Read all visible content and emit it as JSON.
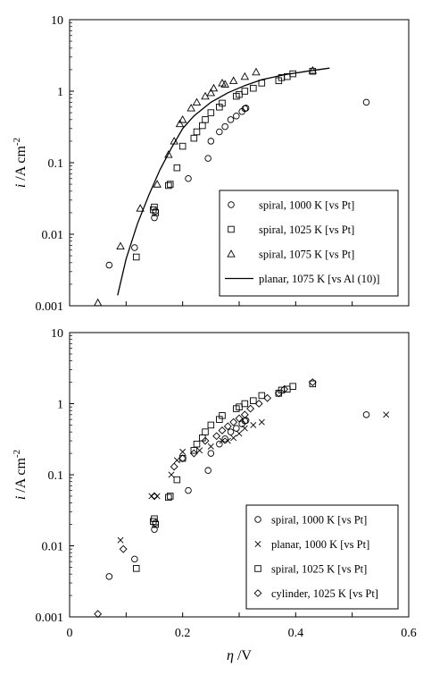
{
  "chart_data": [
    {
      "type": "scatter",
      "title": "",
      "xlabel": "",
      "ylabel_italic": "i",
      "ylabel_rest": " /A cm",
      "ylabel_sup": "-2",
      "ylim": [
        0.001,
        10
      ],
      "yscale": "log",
      "xlim": [
        0,
        0.6
      ],
      "x_ticks_visible": false,
      "y_tick_labels": [
        "0.001",
        "0.01",
        "0.1",
        "1",
        "10"
      ],
      "grid": false,
      "legend_position": "bottom-right",
      "series": [
        {
          "name": "spiral, 1000 K [vs Pt]",
          "marker": "circle",
          "x": [
            0.07,
            0.115,
            0.15,
            0.152,
            0.21,
            0.245,
            0.25,
            0.265,
            0.275,
            0.285,
            0.295,
            0.305,
            0.31,
            0.312,
            0.525
          ],
          "y": [
            0.0037,
            0.0065,
            0.017,
            0.021,
            0.06,
            0.115,
            0.2,
            0.27,
            0.32,
            0.4,
            0.45,
            0.52,
            0.57,
            0.58,
            0.7
          ]
        },
        {
          "name": "spiral, 1025 K [vs Pt]",
          "marker": "square",
          "x": [
            0.118,
            0.148,
            0.15,
            0.152,
            0.175,
            0.178,
            0.19,
            0.2,
            0.22,
            0.225,
            0.235,
            0.24,
            0.25,
            0.265,
            0.27,
            0.295,
            0.3,
            0.31,
            0.325,
            0.34,
            0.37,
            0.375,
            0.385,
            0.395,
            0.43
          ],
          "y": [
            0.0048,
            0.022,
            0.024,
            0.02,
            0.048,
            0.05,
            0.085,
            0.17,
            0.22,
            0.27,
            0.33,
            0.4,
            0.5,
            0.6,
            0.68,
            0.85,
            0.9,
            1.0,
            1.1,
            1.3,
            1.4,
            1.55,
            1.6,
            1.75,
            1.9
          ]
        },
        {
          "name": "spiral, 1075 K [vs Pt]",
          "marker": "triangle",
          "x": [
            0.05,
            0.09,
            0.125,
            0.155,
            0.175,
            0.185,
            0.195,
            0.2,
            0.215,
            0.225,
            0.24,
            0.25,
            0.255,
            0.27,
            0.275,
            0.29,
            0.31,
            0.33,
            0.43
          ],
          "y": [
            0.0011,
            0.0068,
            0.023,
            0.05,
            0.13,
            0.2,
            0.35,
            0.4,
            0.58,
            0.7,
            0.85,
            0.95,
            1.1,
            1.3,
            1.25,
            1.4,
            1.6,
            1.85,
            1.95
          ]
        },
        {
          "name": "planar, 1075 K [vs Al (10)]",
          "marker": "line",
          "x": [
            0.085,
            0.1,
            0.12,
            0.14,
            0.16,
            0.18,
            0.2,
            0.22,
            0.25,
            0.28,
            0.31,
            0.34,
            0.38,
            0.42,
            0.46
          ],
          "y": [
            0.0014,
            0.0045,
            0.014,
            0.035,
            0.08,
            0.16,
            0.3,
            0.45,
            0.7,
            0.95,
            1.2,
            1.45,
            1.7,
            1.9,
            2.1
          ]
        }
      ]
    },
    {
      "type": "scatter",
      "title": "",
      "xlabel_italic": "η",
      "xlabel_rest": " /V",
      "ylabel_italic": "i",
      "ylabel_rest": " /A cm",
      "ylabel_sup": "-2",
      "xlim": [
        0,
        0.6
      ],
      "x_tick_labels": [
        "0",
        "0.2",
        "0.4",
        "0.6"
      ],
      "ylim": [
        0.001,
        10
      ],
      "yscale": "log",
      "y_tick_labels": [
        "0.001",
        "0.01",
        "0.1",
        "1",
        "10"
      ],
      "grid": false,
      "legend_position": "bottom-right",
      "series": [
        {
          "name": "spiral, 1000 K [vs Pt]",
          "marker": "circle",
          "x": [
            0.07,
            0.115,
            0.15,
            0.152,
            0.21,
            0.245,
            0.25,
            0.265,
            0.275,
            0.285,
            0.295,
            0.305,
            0.31,
            0.312,
            0.525
          ],
          "y": [
            0.0037,
            0.0065,
            0.017,
            0.021,
            0.06,
            0.115,
            0.2,
            0.27,
            0.32,
            0.4,
            0.45,
            0.52,
            0.57,
            0.58,
            0.7
          ]
        },
        {
          "name": "planar, 1000 K [vs Pt]",
          "marker": "cross",
          "x": [
            0.09,
            0.145,
            0.155,
            0.18,
            0.19,
            0.2,
            0.23,
            0.25,
            0.27,
            0.28,
            0.29,
            0.3,
            0.31,
            0.325,
            0.34,
            0.56
          ],
          "y": [
            0.012,
            0.05,
            0.05,
            0.1,
            0.16,
            0.21,
            0.22,
            0.25,
            0.3,
            0.3,
            0.33,
            0.38,
            0.45,
            0.5,
            0.55,
            0.7
          ]
        },
        {
          "name": "spiral, 1025 K [vs Pt]",
          "marker": "square",
          "x": [
            0.118,
            0.148,
            0.15,
            0.152,
            0.175,
            0.178,
            0.19,
            0.2,
            0.22,
            0.225,
            0.235,
            0.24,
            0.25,
            0.265,
            0.27,
            0.295,
            0.3,
            0.31,
            0.325,
            0.34,
            0.37,
            0.375,
            0.385,
            0.395,
            0.43
          ],
          "y": [
            0.0048,
            0.022,
            0.024,
            0.02,
            0.048,
            0.05,
            0.085,
            0.17,
            0.22,
            0.27,
            0.33,
            0.4,
            0.5,
            0.6,
            0.68,
            0.85,
            0.9,
            1.0,
            1.1,
            1.3,
            1.4,
            1.55,
            1.6,
            1.75,
            1.9
          ]
        },
        {
          "name": "cylinder, 1025 K [vs Pt]",
          "marker": "diamond",
          "x": [
            0.05,
            0.095,
            0.15,
            0.185,
            0.2,
            0.22,
            0.24,
            0.26,
            0.27,
            0.28,
            0.29,
            0.3,
            0.31,
            0.32,
            0.335,
            0.35,
            0.37,
            0.38,
            0.43
          ],
          "y": [
            0.0011,
            0.009,
            0.05,
            0.13,
            0.17,
            0.2,
            0.3,
            0.35,
            0.42,
            0.48,
            0.55,
            0.62,
            0.7,
            0.85,
            1.0,
            1.2,
            1.4,
            1.6,
            2.0
          ]
        }
      ]
    }
  ]
}
